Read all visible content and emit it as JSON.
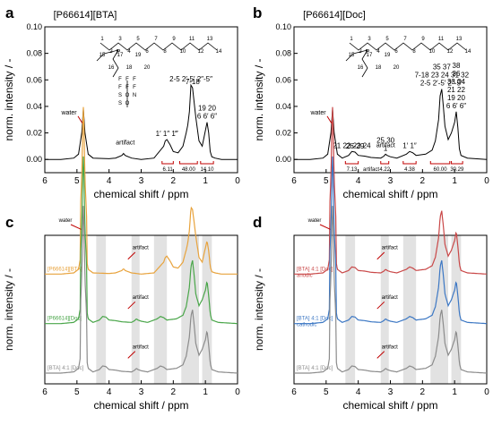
{
  "chart_data": [
    {
      "panel": "a",
      "type": "line",
      "title": "[P66614][BTA]",
      "xlabel": "chemical shift / ppm",
      "ylabel": "norm. intensity / -",
      "xlim": [
        6,
        0
      ],
      "ylim": [
        -0.01,
        0.1
      ],
      "x_ticks": [
        "6",
        "5",
        "4",
        "3",
        "2",
        "1",
        "0"
      ],
      "y_ticks": [
        "0.00",
        "0.02",
        "0.04",
        "0.06",
        "0.08",
        "0.10"
      ],
      "color": "#000000",
      "series": [
        {
          "x": [
            6.0,
            5.5,
            5.1,
            4.95,
            4.85,
            4.8,
            4.75,
            4.65,
            4.5,
            4.0,
            3.8,
            3.6,
            3.55,
            3.5,
            3.3,
            3.0,
            2.6,
            2.3,
            2.25,
            2.2,
            2.1,
            2.0,
            1.85,
            1.7,
            1.6,
            1.55,
            1.5,
            1.45,
            1.4,
            1.3,
            1.2,
            1.1,
            1.0,
            0.95,
            0.9,
            0.85,
            0.8,
            0.7,
            0.5,
            0.0
          ],
          "y": [
            0,
            0,
            0.001,
            0.004,
            0.02,
            0.038,
            0.02,
            0.004,
            0.001,
            0.0005,
            0.001,
            0.003,
            0.0045,
            0.003,
            0.001,
            0,
            0.001,
            0.01,
            0.014,
            0.015,
            0.011,
            0.006,
            0.005,
            0.01,
            0.02,
            0.026,
            0.036,
            0.056,
            0.054,
            0.032,
            0.014,
            0.01,
            0.022,
            0.028,
            0.02,
            0.006,
            0.002,
            0.001,
            0,
            0
          ]
        }
      ],
      "peak_labels": [
        {
          "text": "water",
          "x": 4.8,
          "y": 0.038
        },
        {
          "text": "artifact",
          "x": 3.55,
          "y": 0.0045
        },
        {
          "text": "1′ 1″ 1‴",
          "x": 2.2,
          "y": 0.015
        },
        {
          "text": "2-5 2′-5′ 2″-5″",
          "x": 1.45,
          "y": 0.056
        },
        {
          "text": "7-18",
          "x": 1.4,
          "y": 0.054
        },
        {
          "text": "6 6′ 6″",
          "x": 0.95,
          "y": 0.028
        },
        {
          "text": "19 20",
          "x": 0.95,
          "y": 0.028
        }
      ],
      "integrals": [
        {
          "text": "6.11",
          "x": [
            2.35,
            2.0
          ]
        },
        {
          "text": "48.00",
          "x": [
            1.8,
            1.25
          ]
        },
        {
          "text": "14.10",
          "x": [
            1.15,
            0.75
          ]
        }
      ],
      "structure_labels": [
        "1",
        "2",
        "3",
        "4",
        "5",
        "6",
        "7",
        "8",
        "9",
        "10",
        "11",
        "12",
        "13",
        "14",
        "15",
        "16",
        "17",
        "18",
        "19",
        "20",
        "P"
      ],
      "anion_labels": [
        "F",
        "F",
        "F",
        "F",
        "F",
        "F",
        "S",
        "O",
        "N",
        "S",
        "O"
      ]
    },
    {
      "panel": "b",
      "type": "line",
      "title": "[P66614][Doc]",
      "xlabel": "chemical shift / ppm",
      "ylabel": "norm. intensity / -",
      "xlim": [
        6,
        0
      ],
      "ylim": [
        -0.01,
        0.1
      ],
      "x_ticks": [
        "6",
        "5",
        "4",
        "3",
        "2",
        "1",
        "0"
      ],
      "y_ticks": [
        "0.00",
        "0.02",
        "0.04",
        "0.06",
        "0.08",
        "0.10"
      ],
      "color": "#000000",
      "series": [
        {
          "x": [
            6.0,
            5.5,
            5.1,
            4.95,
            4.85,
            4.8,
            4.75,
            4.65,
            4.5,
            4.3,
            4.2,
            4.1,
            4.0,
            3.8,
            3.6,
            3.3,
            3.2,
            3.15,
            3.1,
            3.0,
            2.8,
            2.5,
            2.4,
            2.3,
            2.2,
            1.9,
            1.7,
            1.6,
            1.5,
            1.45,
            1.4,
            1.35,
            1.3,
            1.2,
            1.1,
            1.0,
            0.95,
            0.9,
            0.85,
            0.8,
            0.6,
            0.0
          ],
          "y": [
            0,
            0,
            0.001,
            0.004,
            0.02,
            0.038,
            0.02,
            0.004,
            0.001,
            0.003,
            0.006,
            0.0055,
            0.003,
            0.0025,
            0.0015,
            0.001,
            0.0025,
            0.004,
            0.003,
            0.002,
            0.001,
            0.004,
            0.006,
            0.005,
            0.003,
            0.004,
            0.007,
            0.014,
            0.03,
            0.048,
            0.053,
            0.04,
            0.025,
            0.015,
            0.02,
            0.028,
            0.036,
            0.024,
            0.008,
            0.003,
            0.001,
            0
          ]
        }
      ],
      "peak_labels": [
        {
          "text": "water",
          "x": 4.8,
          "y": 0.038
        },
        {
          "text": "21 22 23 24",
          "x": 4.2,
          "y": 0.006
        },
        {
          "text": "26-29",
          "x": 4.1,
          "y": 0.0055
        },
        {
          "text": "artifact",
          "x": 3.2,
          "y": 0.0025
        },
        {
          "text": "1",
          "x": 3.15,
          "y": 0.004
        },
        {
          "text": "25 30",
          "x": 3.15,
          "y": 0.004
        },
        {
          "text": "1′ 1″",
          "x": 2.4,
          "y": 0.006
        },
        {
          "text": "2-5 2′-5′ 2″-5″",
          "x": 1.4,
          "y": 0.053
        },
        {
          "text": "7-18 23 24 31 32",
          "x": 1.4,
          "y": 0.053
        },
        {
          "text": "35 37",
          "x": 1.4,
          "y": 0.053
        },
        {
          "text": "6 6′ 6″",
          "x": 0.95,
          "y": 0.036
        },
        {
          "text": "19 20",
          "x": 0.95,
          "y": 0.036
        },
        {
          "text": "21 22",
          "x": 0.95,
          "y": 0.036
        },
        {
          "text": "33 34",
          "x": 0.95,
          "y": 0.036
        },
        {
          "text": "36",
          "x": 0.95,
          "y": 0.036
        },
        {
          "text": "38",
          "x": 0.95,
          "y": 0.036
        }
      ],
      "integrals": [
        {
          "text": "7.13",
          "x": [
            4.4,
            4.0
          ]
        },
        {
          "text": "4.22",
          "x": [
            3.3,
            3.05
          ]
        },
        {
          "text": "4.38",
          "x": [
            2.6,
            2.2
          ]
        },
        {
          "text": "60.00",
          "x": [
            1.75,
            1.15
          ]
        },
        {
          "text": "30.29",
          "x": [
            1.1,
            0.75
          ]
        }
      ],
      "integral_note": "artifact",
      "structure_labels": [
        "1",
        "2",
        "3",
        "4",
        "5",
        "6",
        "7",
        "8",
        "9",
        "10",
        "11",
        "12",
        "13",
        "14",
        "15",
        "16",
        "17",
        "18",
        "19",
        "20",
        "21",
        "22",
        "23",
        "24",
        "25",
        "26",
        "27",
        "28",
        "29",
        "30",
        "31",
        "32",
        "33",
        "34",
        "35",
        "36",
        "37",
        "38",
        "P",
        "O",
        "O",
        "O",
        "O",
        "S",
        "Na"
      ]
    },
    {
      "panel": "c",
      "type": "line",
      "xlabel": "chemical shift / ppm",
      "ylabel": "norm. intensity / -",
      "xlim": [
        6,
        0
      ],
      "x_ticks": [
        "6",
        "5",
        "4",
        "3",
        "2",
        "1",
        "0"
      ],
      "shaded_regions": [
        [
          4.4,
          4.1
        ],
        [
          3.3,
          3.05
        ],
        [
          2.6,
          2.2
        ],
        [
          1.75,
          1.2
        ],
        [
          1.1,
          0.8
        ]
      ],
      "series": [
        {
          "name": "[P66614][BTA]",
          "color": "#e8a33d",
          "offset": 2.0,
          "annotations": [
            "water",
            "artifact"
          ]
        },
        {
          "name": "[P66614][Doc]",
          "color": "#4aa64a",
          "offset": 1.0,
          "annotations": [
            "artifact"
          ]
        },
        {
          "name": "[BTA] 4:1 [Doc]",
          "color": "#8c8c8c",
          "offset": 0.0,
          "annotations": [
            "artifact"
          ]
        }
      ]
    },
    {
      "panel": "d",
      "type": "line",
      "xlabel": "chemical shift / ppm",
      "ylabel": "norm. intensity / -",
      "xlim": [
        6,
        0
      ],
      "x_ticks": [
        "6",
        "5",
        "4",
        "3",
        "2",
        "1",
        "0"
      ],
      "shaded_regions": [
        [
          4.4,
          4.1
        ],
        [
          3.3,
          3.05
        ],
        [
          2.6,
          2.2
        ],
        [
          1.75,
          1.2
        ],
        [
          1.1,
          0.8
        ]
      ],
      "series": [
        {
          "name": "[BTA] 4:1 [Doc]",
          "sublabel": "anodic",
          "color": "#c94848",
          "offset": 2.0,
          "annotations": [
            "water",
            "artifact"
          ]
        },
        {
          "name": "[BTA] 4:1 [Doc]",
          "sublabel": "cathodic",
          "color": "#3d78c4",
          "offset": 1.0,
          "annotations": [
            "artifact"
          ]
        },
        {
          "name": "[BTA] 4:1 [Doc]",
          "color": "#8c8c8c",
          "offset": 0.0,
          "annotations": [
            "artifact"
          ]
        }
      ]
    }
  ],
  "panel_letters": [
    "a",
    "b",
    "c",
    "d"
  ]
}
